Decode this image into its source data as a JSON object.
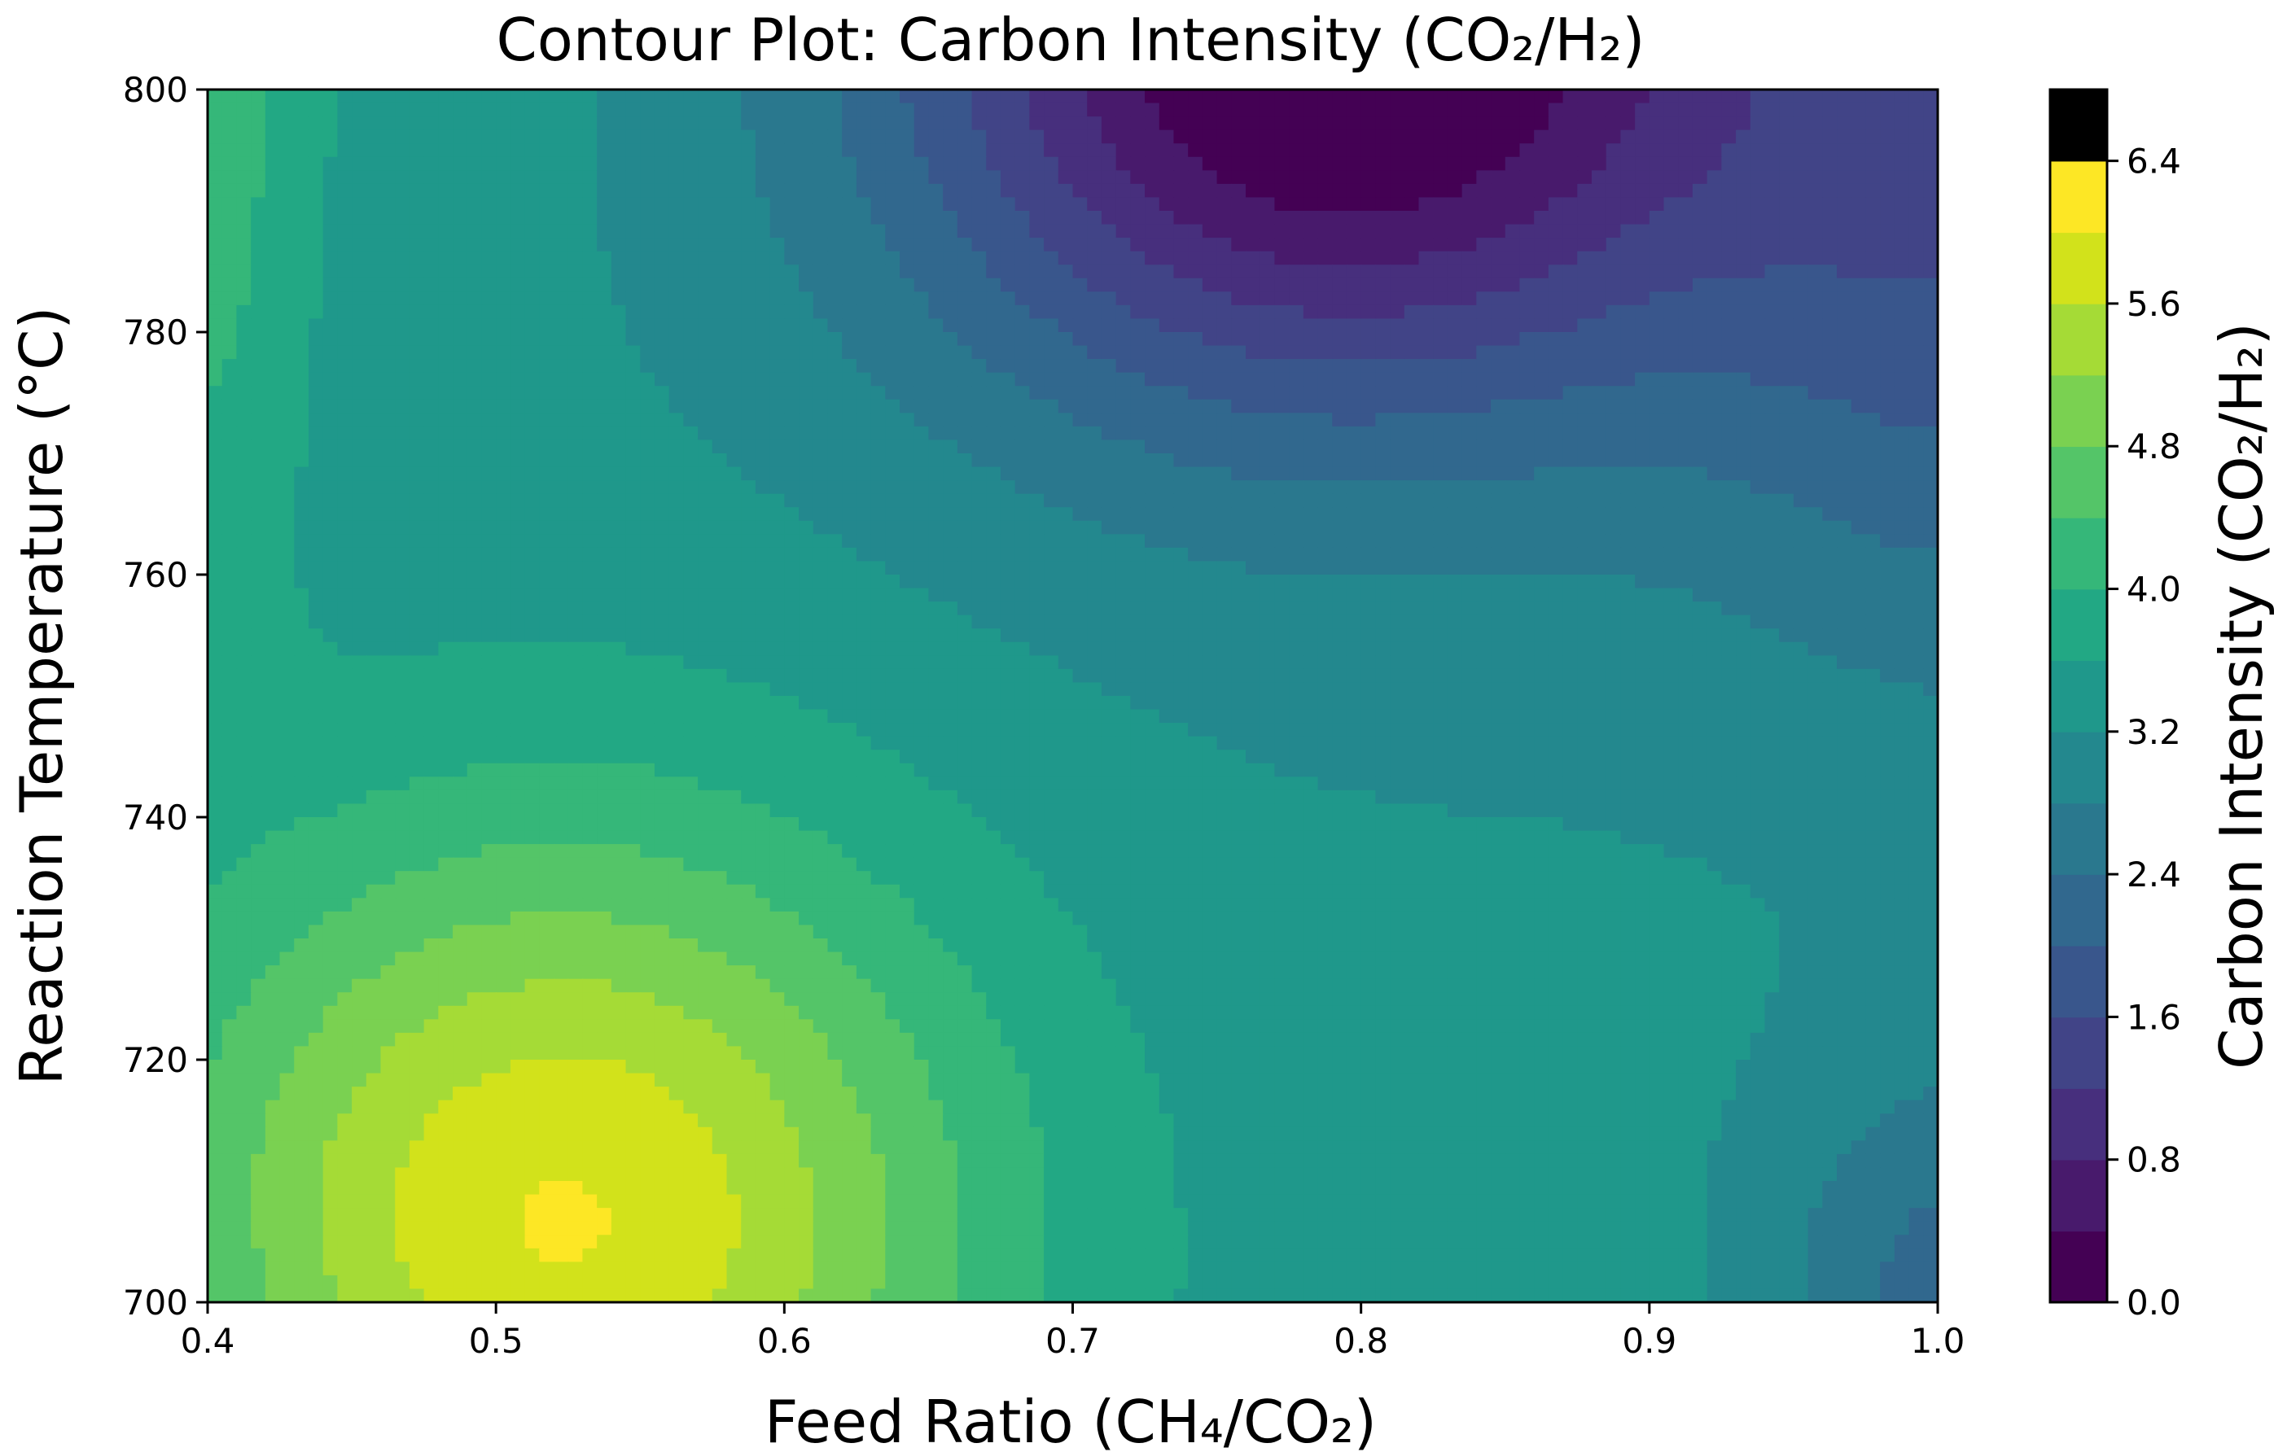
{
  "chart_data": {
    "type": "contour",
    "title": "Contour Plot: Carbon Intensity (CO₂/H₂)",
    "xlabel": "Feed Ratio (CH₄/CO₂)",
    "ylabel": "Reaction Temperature (°C)",
    "colorbar_label": "Carbon Intensity (CO₂/H₂)",
    "colormap": "viridis",
    "xlim": [
      0.4,
      1.0
    ],
    "ylim": [
      700,
      800
    ],
    "x_ticks": [
      "0.4",
      "0.5",
      "0.6",
      "0.7",
      "0.8",
      "0.9",
      "1.0"
    ],
    "y_ticks": [
      "700",
      "720",
      "740",
      "760",
      "780",
      "800"
    ],
    "levels": [
      0.0,
      0.4,
      0.8,
      1.2,
      1.6,
      2.0,
      2.4,
      2.8,
      3.2,
      3.6,
      4.0,
      4.4,
      4.8,
      5.2,
      5.6,
      6.0,
      6.4,
      6.8
    ],
    "colorbar_ticks": [
      "0.0",
      "0.8",
      "1.6",
      "2.4",
      "3.2",
      "4.0",
      "4.8",
      "5.6",
      "6.4"
    ],
    "level_colors": [
      "#440154",
      "#481a6c",
      "#472f7d",
      "#414487",
      "#39568c",
      "#31688e",
      "#2a788e",
      "#23888e",
      "#1f988b",
      "#22a884",
      "#35b779",
      "#54c568",
      "#7ad151",
      "#a5db36",
      "#d2e21b",
      "#fde725"
    ],
    "grid": false,
    "legend": "colorbar-right"
  }
}
